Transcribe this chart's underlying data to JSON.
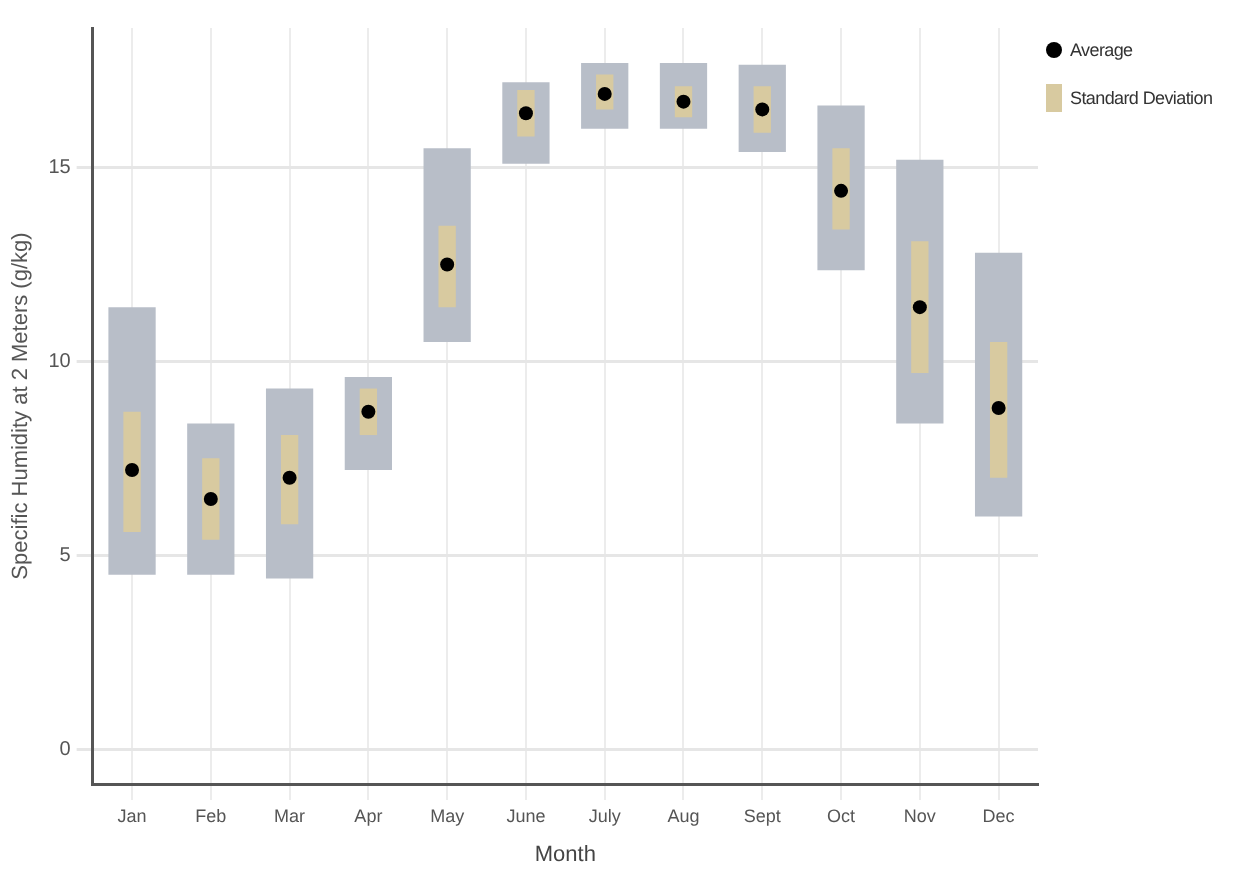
{
  "chart_data": {
    "type": "bar",
    "xlabel": "Month",
    "ylabel": "Specific Humidity at 2 Meters (g/kg)",
    "categories": [
      "Jan",
      "Feb",
      "Mar",
      "Apr",
      "May",
      "June",
      "July",
      "Aug",
      "Sept",
      "Oct",
      "Nov",
      "Dec"
    ],
    "ylim": [
      -0.9,
      18.6
    ],
    "yticks": [
      0,
      5,
      10,
      15
    ],
    "grid": true,
    "legend": "top right",
    "series": [
      {
        "color": "#b8bec8",
        "base": [
          4.5,
          4.5,
          4.4,
          7.2,
          10.5,
          15.1,
          16.0,
          16.0,
          15.4,
          12.35,
          8.4,
          6.0
        ],
        "values": [
          6.9,
          3.9,
          4.9,
          2.4,
          5.0,
          2.1,
          1.7,
          1.7,
          2.25,
          4.25,
          6.8,
          6.8
        ]
      },
      {
        "name": "Standard Deviation",
        "color": "#d8caa0",
        "base": [
          5.6,
          5.4,
          5.8,
          8.1,
          11.4,
          15.8,
          16.5,
          16.3,
          15.9,
          13.4,
          9.7,
          7.0
        ],
        "values": [
          3.1,
          2.1,
          2.3,
          1.2,
          2.1,
          1.2,
          0.9,
          0.8,
          1.2,
          2.1,
          3.4,
          3.5
        ]
      },
      {
        "name": "Average",
        "type": "scatter",
        "color": "#000000",
        "marker": "circle",
        "x": [
          "Jan",
          "Feb",
          "Mar",
          "Apr",
          "May",
          "June",
          "July",
          "Aug",
          "Sept",
          "Oct",
          "Nov",
          "Dec"
        ],
        "values": [
          7.2,
          6.45,
          7.0,
          8.7,
          12.5,
          16.4,
          16.9,
          16.7,
          16.5,
          14.4,
          11.4,
          8.8
        ]
      }
    ]
  }
}
